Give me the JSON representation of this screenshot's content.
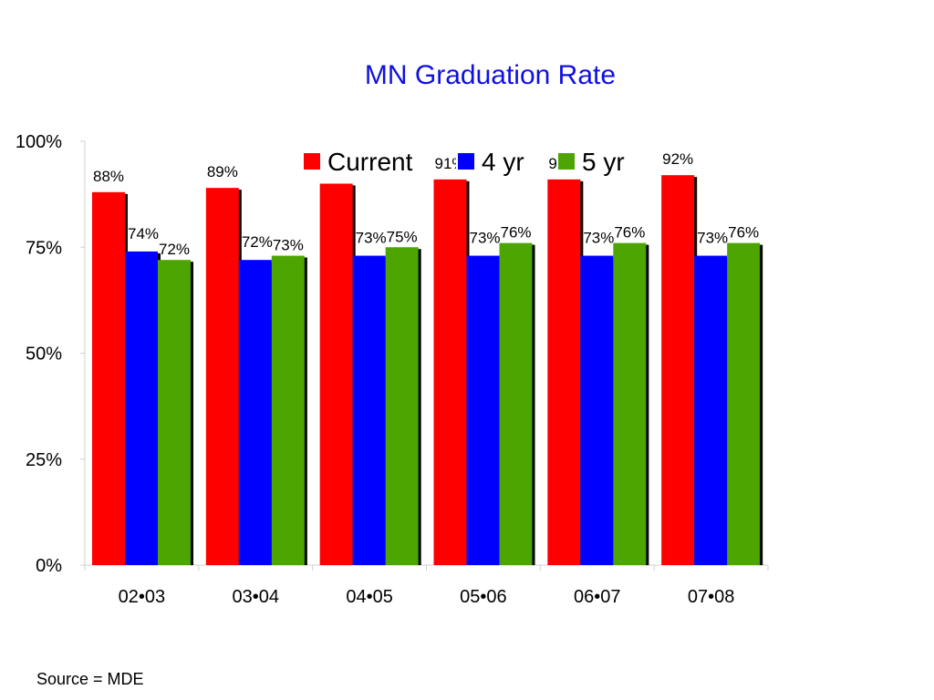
{
  "chart_data": {
    "type": "bar",
    "title": "MN Graduation Rate",
    "xlabel": "",
    "ylabel": "",
    "categories": [
      "02•03",
      "03•04",
      "04•05",
      "05•06",
      "06•07",
      "07•08"
    ],
    "series": [
      {
        "name": "Current",
        "color": "#ff0000",
        "values": [
          88,
          89,
          90,
          91,
          91,
          92
        ],
        "labels": [
          "88%",
          "89%",
          "90%",
          "91%",
          "91%",
          "92%"
        ]
      },
      {
        "name": "4 yr",
        "color": "#0000ff",
        "values": [
          74,
          72,
          73,
          73,
          73,
          73
        ],
        "labels": [
          "74%",
          "72%",
          "73%",
          "73%",
          "73%",
          "73%"
        ]
      },
      {
        "name": "5 yr",
        "color": "#4ca500",
        "values": [
          72,
          73,
          75,
          76,
          76,
          76
        ],
        "labels": [
          "72%",
          "73%",
          "75%",
          "76%",
          "76%",
          "76%"
        ]
      }
    ],
    "ylim": [
      0,
      100
    ],
    "yticks": [
      0,
      25,
      50,
      75,
      100
    ],
    "ytick_labels": [
      "0%",
      "25%",
      "50%",
      "75%",
      "100%"
    ],
    "grid": false,
    "legend_position": "top-right"
  },
  "footer": {
    "source": "Source = MDE"
  }
}
